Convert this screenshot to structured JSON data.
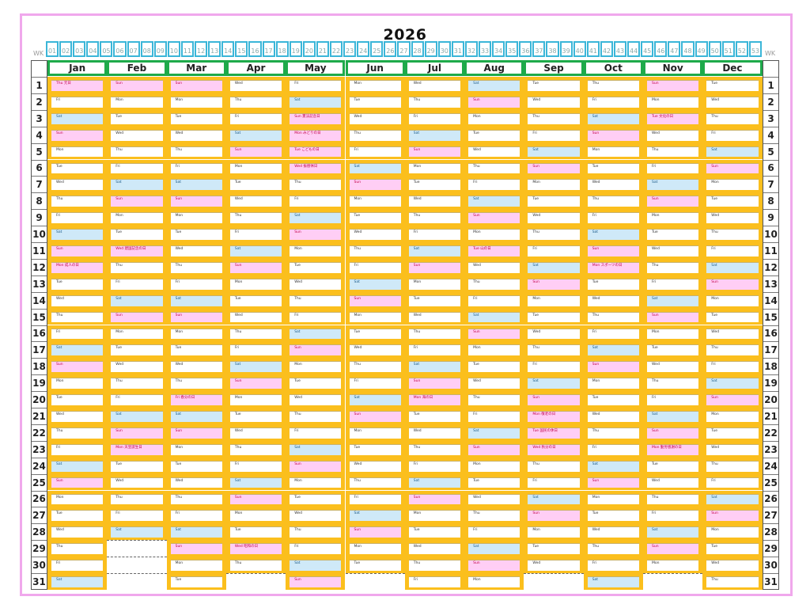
{
  "title": "2026",
  "wk_label": "WK",
  "weeks": [
    "01",
    "02",
    "03",
    "04",
    "05",
    "06",
    "07",
    "08",
    "09",
    "10",
    "11",
    "12",
    "13",
    "14",
    "15",
    "16",
    "17",
    "18",
    "19",
    "20",
    "21",
    "22",
    "23",
    "24",
    "25",
    "26",
    "27",
    "28",
    "29",
    "30",
    "31",
    "32",
    "33",
    "34",
    "35",
    "36",
    "37",
    "38",
    "39",
    "40",
    "41",
    "42",
    "43",
    "44",
    "45",
    "46",
    "47",
    "48",
    "49",
    "50",
    "51",
    "52",
    "53"
  ],
  "months": [
    "Jan",
    "Feb",
    "Mar",
    "Apr",
    "May",
    "Jun",
    "Jul",
    "Aug",
    "Sep",
    "Oct",
    "Nov",
    "Dec"
  ],
  "weekday_names": [
    "Sun",
    "Mon",
    "Tue",
    "Wed",
    "Thu",
    "Fri",
    "Sat"
  ],
  "year_start_weekday": 4,
  "days_in_month": [
    31,
    28,
    31,
    30,
    31,
    30,
    31,
    31,
    30,
    31,
    30,
    31
  ],
  "holidays": {
    "1-1": "元日",
    "1-12": "成人の日",
    "2-11": "建国記念の日",
    "2-23": "天皇誕生日",
    "3-20": "春分の日",
    "4-29": "昭和の日",
    "5-3": "憲法記念日",
    "5-4": "みどりの日",
    "5-5": "こどもの日",
    "5-6": "振替休日",
    "7-20": "海の日",
    "8-11": "山の日",
    "9-21": "敬老の日",
    "9-22": "国民の休日",
    "9-23": "秋分の日",
    "10-12": "スポーツの日",
    "11-3": "文化の日",
    "11-23": "勤労感謝の日"
  },
  "colors": {
    "frame": "#f0a8ec",
    "week_box": "#3bb6d8",
    "month_header": "#1eaa4a",
    "day_border": "#fbbf1d",
    "saturday": "#cfe9f8",
    "sunday_holiday": "#ffcef5"
  }
}
